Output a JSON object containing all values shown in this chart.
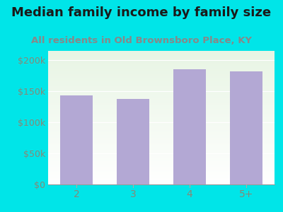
{
  "title": "Median family income by family size",
  "subtitle": "All residents in Old Brownsboro Place, KY",
  "categories": [
    "2",
    "3",
    "4",
    "5+"
  ],
  "values": [
    143000,
    138000,
    185000,
    182000
  ],
  "bar_color": "#b3a8d4",
  "background_color": "#00e5e8",
  "title_color": "#1a1a1a",
  "subtitle_color": "#888888",
  "tick_label_color": "#888877",
  "ytick_labels": [
    "$0",
    "$50k",
    "$100k",
    "$150k",
    "$200k"
  ],
  "ytick_values": [
    0,
    50000,
    100000,
    150000,
    200000
  ],
  "ylim": [
    0,
    215000
  ],
  "title_fontsize": 13,
  "subtitle_fontsize": 9.5,
  "xtick_fontsize": 10,
  "ytick_fontsize": 9
}
